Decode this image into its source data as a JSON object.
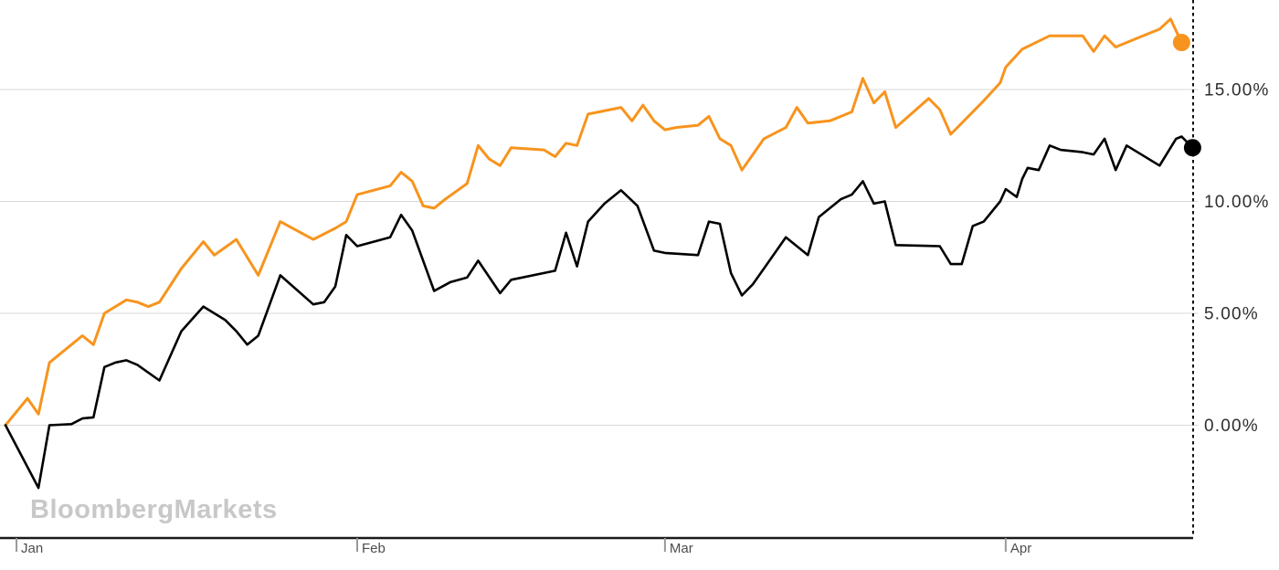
{
  "watermark": "BloombergMarkets",
  "colors": {
    "orange_series": "#f7941e",
    "black_series": "#000000",
    "gridline": "#d9d9d9",
    "axis_line": "#1a1a1a",
    "tick_mark": "#999999",
    "y_label": "#2e2e2e",
    "x_label": "#4d4d4d",
    "cursor_line": "#111111",
    "watermark_color": "#c8c8c8",
    "background": "#ffffff"
  },
  "chart_data": {
    "type": "line",
    "title": "",
    "watermark": "BloombergMarkets",
    "grid": "horizontal",
    "legend": "none",
    "x_axis": {
      "tick_labels": [
        "Jan",
        "Feb",
        "Mar",
        "Apr"
      ],
      "tick_days": [
        0,
        31,
        59,
        90
      ],
      "day_range": [
        -1.5,
        107.3
      ],
      "unit": "days from Jan 1"
    },
    "y_axis": {
      "side": "right",
      "unit": "percent",
      "tick_labels": [
        "0.00%",
        "5.00%",
        "10.00%",
        "15.00%"
      ],
      "tick_values": [
        0,
        5,
        10,
        15
      ],
      "range": [
        -5.0,
        19.0
      ]
    },
    "cursor_day": 107.05,
    "series": [
      {
        "name": "orange",
        "color": "#f7941e",
        "stroke_width": 3,
        "end_dot": true,
        "end_dot_radius": 9.5,
        "points": [
          [
            -1,
            0.0
          ],
          [
            1,
            1.2
          ],
          [
            2,
            0.5
          ],
          [
            3,
            2.8
          ],
          [
            5,
            3.6
          ],
          [
            6,
            4.0
          ],
          [
            7,
            3.6
          ],
          [
            8,
            5.0
          ],
          [
            10,
            5.6
          ],
          [
            11,
            5.5
          ],
          [
            12,
            5.3
          ],
          [
            13,
            5.5
          ],
          [
            15,
            7.0
          ],
          [
            17,
            8.2
          ],
          [
            18,
            7.6
          ],
          [
            20,
            8.3
          ],
          [
            22,
            6.7
          ],
          [
            24,
            9.1
          ],
          [
            27,
            8.3
          ],
          [
            29,
            8.8
          ],
          [
            30,
            9.1
          ],
          [
            31,
            10.3
          ],
          [
            34,
            10.7
          ],
          [
            35,
            11.3
          ],
          [
            36,
            10.9
          ],
          [
            37,
            9.8
          ],
          [
            38,
            9.7
          ],
          [
            39,
            10.1
          ],
          [
            41,
            10.8
          ],
          [
            42,
            12.5
          ],
          [
            43,
            11.9
          ],
          [
            44,
            11.6
          ],
          [
            45,
            12.4
          ],
          [
            48,
            12.3
          ],
          [
            49,
            12.0
          ],
          [
            50,
            12.6
          ],
          [
            51,
            12.5
          ],
          [
            52,
            13.9
          ],
          [
            53,
            14.0
          ],
          [
            55,
            14.2
          ],
          [
            56,
            13.6
          ],
          [
            57,
            14.3
          ],
          [
            58,
            13.6
          ],
          [
            59,
            13.2
          ],
          [
            60,
            13.3
          ],
          [
            62,
            13.4
          ],
          [
            63,
            13.8
          ],
          [
            64,
            12.8
          ],
          [
            65,
            12.5
          ],
          [
            66,
            11.4
          ],
          [
            67,
            12.1
          ],
          [
            68,
            12.8
          ],
          [
            70,
            13.3
          ],
          [
            71,
            14.2
          ],
          [
            72,
            13.5
          ],
          [
            74,
            13.6
          ],
          [
            76,
            14.0
          ],
          [
            77,
            15.5
          ],
          [
            78,
            14.4
          ],
          [
            79,
            14.9
          ],
          [
            80,
            13.3
          ],
          [
            83,
            14.6
          ],
          [
            84,
            14.1
          ],
          [
            85,
            13.0
          ],
          [
            86,
            13.5
          ],
          [
            88,
            14.5
          ],
          [
            89.5,
            15.3
          ],
          [
            90,
            16.0
          ],
          [
            91.5,
            16.8
          ],
          [
            94,
            17.4
          ],
          [
            97,
            17.4
          ],
          [
            98,
            16.7
          ],
          [
            99,
            17.4
          ],
          [
            100,
            16.9
          ],
          [
            102,
            17.3
          ],
          [
            104,
            17.7
          ],
          [
            105,
            18.15
          ],
          [
            106,
            17.1
          ]
        ]
      },
      {
        "name": "black",
        "color": "#000000",
        "stroke_width": 2.6,
        "end_dot": true,
        "end_dot_radius": 9.5,
        "points": [
          [
            -1,
            0.0
          ],
          [
            2,
            -2.8
          ],
          [
            3,
            0.0
          ],
          [
            5,
            0.05
          ],
          [
            6,
            0.3
          ],
          [
            7,
            0.35
          ],
          [
            8,
            2.6
          ],
          [
            9,
            2.8
          ],
          [
            10,
            2.9
          ],
          [
            11,
            2.7
          ],
          [
            13,
            2.0
          ],
          [
            15,
            4.2
          ],
          [
            17,
            5.3
          ],
          [
            18,
            5.0
          ],
          [
            19,
            4.7
          ],
          [
            20,
            4.2
          ],
          [
            21,
            3.6
          ],
          [
            22,
            4.0
          ],
          [
            24,
            6.7
          ],
          [
            27,
            5.4
          ],
          [
            28,
            5.5
          ],
          [
            29,
            6.2
          ],
          [
            30,
            8.5
          ],
          [
            31,
            8.0
          ],
          [
            34,
            8.4
          ],
          [
            35,
            9.4
          ],
          [
            36,
            8.7
          ],
          [
            38,
            6.0
          ],
          [
            39.5,
            6.4
          ],
          [
            41,
            6.6
          ],
          [
            42,
            7.35
          ],
          [
            44,
            5.9
          ],
          [
            45,
            6.5
          ],
          [
            49,
            6.9
          ],
          [
            50,
            8.6
          ],
          [
            51,
            7.1
          ],
          [
            52,
            9.1
          ],
          [
            53.5,
            9.9
          ],
          [
            55,
            10.5
          ],
          [
            56.5,
            9.8
          ],
          [
            58,
            7.8
          ],
          [
            59,
            7.7
          ],
          [
            62,
            7.6
          ],
          [
            63,
            9.1
          ],
          [
            64,
            9.0
          ],
          [
            65,
            6.8
          ],
          [
            66,
            5.8
          ],
          [
            67,
            6.3
          ],
          [
            68,
            7.0
          ],
          [
            70,
            8.4
          ],
          [
            72,
            7.6
          ],
          [
            73,
            9.3
          ],
          [
            75,
            10.1
          ],
          [
            76,
            10.3
          ],
          [
            77,
            10.9
          ],
          [
            78,
            9.9
          ],
          [
            79,
            10.0
          ],
          [
            80,
            8.05
          ],
          [
            84,
            8.0
          ],
          [
            85,
            7.2
          ],
          [
            86,
            7.2
          ],
          [
            87,
            8.9
          ],
          [
            88,
            9.1
          ],
          [
            89.5,
            10.0
          ],
          [
            90,
            10.55
          ],
          [
            91,
            10.2
          ],
          [
            91.5,
            11.0
          ],
          [
            92,
            11.5
          ],
          [
            93,
            11.4
          ],
          [
            94,
            12.5
          ],
          [
            95,
            12.3
          ],
          [
            97,
            12.2
          ],
          [
            98,
            12.1
          ],
          [
            99,
            12.8
          ],
          [
            100,
            11.4
          ],
          [
            101,
            12.5
          ],
          [
            104,
            11.6
          ],
          [
            105.5,
            12.8
          ],
          [
            106,
            12.9
          ],
          [
            107,
            12.4
          ]
        ]
      }
    ]
  }
}
